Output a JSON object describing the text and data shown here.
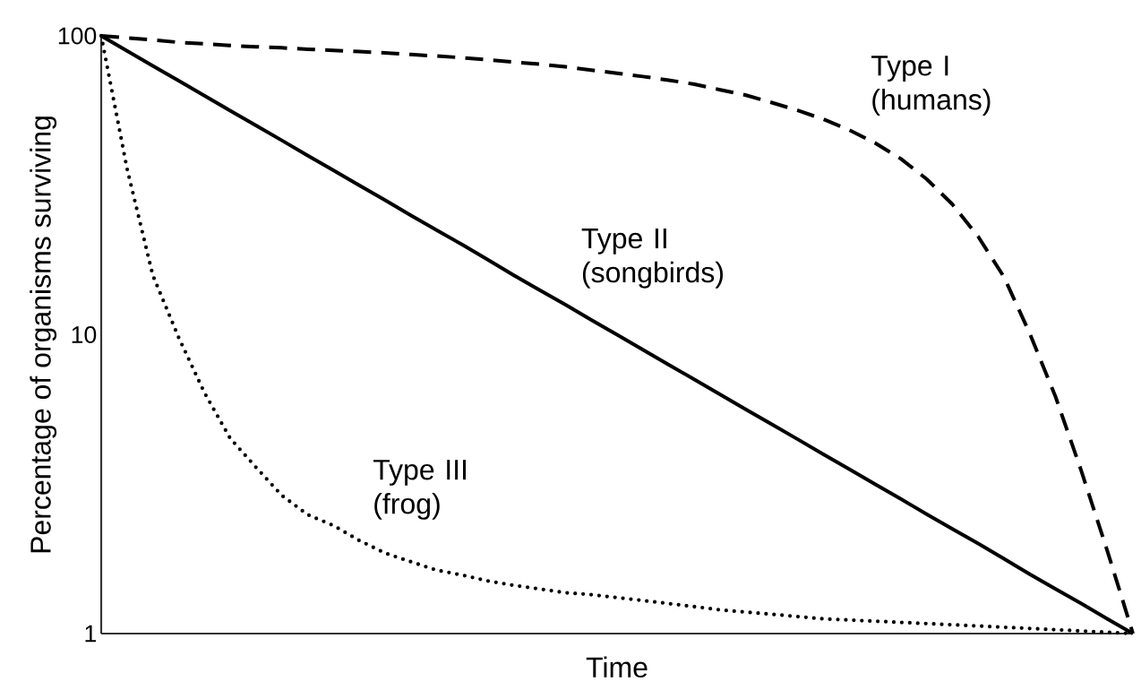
{
  "chart_data": {
    "type": "line",
    "xlabel": "Time",
    "ylabel": "Percentage of organisms surviving",
    "categories": [
      null,
      null,
      null,
      null,
      null,
      null,
      null,
      null,
      null,
      null,
      null,
      null,
      null,
      null,
      null,
      null,
      null,
      null,
      null,
      null,
      null,
      null,
      null,
      null,
      null,
      null,
      null,
      null,
      null,
      null,
      null,
      null,
      null,
      null,
      null,
      null,
      null,
      null,
      null,
      null,
      null
    ],
    "log": "y",
    "ylim": [
      1,
      100
    ],
    "yticks": [
      1,
      10,
      100
    ],
    "series": [
      {
        "name": "Type I (humans)",
        "color": "#000000",
        "line_style": "dashed",
        "values": [
          100,
          98.4,
          97,
          95.1,
          94,
          92.8,
          91.9,
          91.2,
          90.2,
          89.4,
          88.6,
          87.7,
          86.6,
          85.6,
          84.5,
          83.1,
          81.7,
          80.4,
          78.8,
          76.8,
          75,
          73.1,
          71.1,
          68.9,
          66,
          63.3,
          59.8,
          56.3,
          52.6,
          48.4,
          43.8,
          38.8,
          33.2,
          27.3,
          21.3,
          15.6,
          10.1,
          6.2,
          3.5,
          1.9,
          1
        ]
      },
      {
        "name": "Type II (songbirds)",
        "color": "#000000",
        "line_style": "solid",
        "values": [
          100,
          89.1,
          79.4,
          70.8,
          63.1,
          56.2,
          50.1,
          44.7,
          39.8,
          35.5,
          31.6,
          28.2,
          25.1,
          22.4,
          20,
          17.8,
          15.8,
          14.1,
          12.6,
          11.2,
          10,
          8.91,
          7.94,
          7.08,
          6.31,
          5.62,
          5.01,
          4.47,
          3.98,
          3.55,
          3.16,
          2.82,
          2.51,
          2.24,
          2,
          1.78,
          1.58,
          1.41,
          1.26,
          1.12,
          1
        ]
      },
      {
        "name": "Type III (frog)",
        "color": "#000000",
        "line_style": "dotted",
        "values": [
          100,
          36,
          15.8,
          9.8,
          6.4,
          4.5,
          3.6,
          2.9,
          2.5,
          2.3,
          2.05,
          1.86,
          1.74,
          1.63,
          1.57,
          1.5,
          1.45,
          1.41,
          1.37,
          1.35,
          1.32,
          1.29,
          1.26,
          1.23,
          1.2,
          1.18,
          1.16,
          1.14,
          1.12,
          1.11,
          1.1,
          1.09,
          1.08,
          1.07,
          1.06,
          1.05,
          1.04,
          1.03,
          1.02,
          1.01,
          1
        ]
      }
    ]
  }
}
